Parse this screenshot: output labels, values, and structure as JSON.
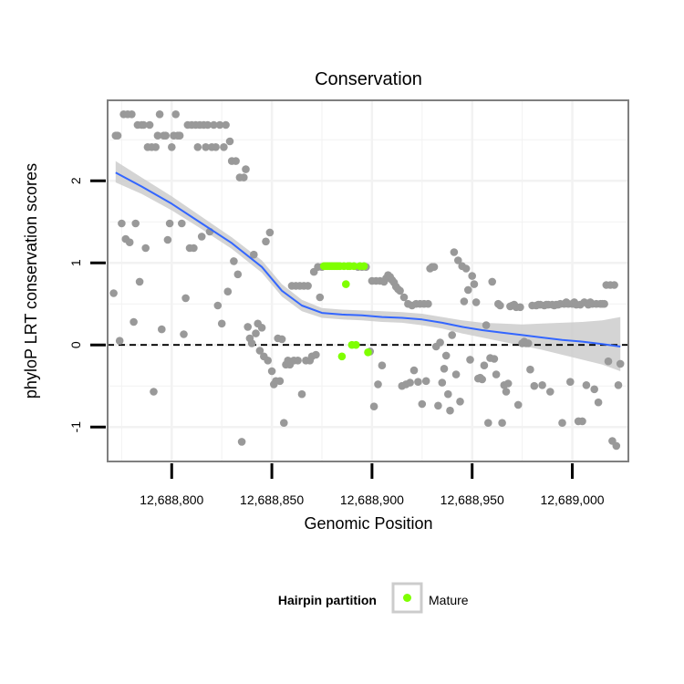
{
  "chart_data": {
    "type": "scatter",
    "title": "Conservation",
    "xlabel": "Genomic Position",
    "ylabel": "phyloP LRT conservation scores",
    "xlim": [
      12688768,
      12689028
    ],
    "ylim": [
      -1.42,
      2.98
    ],
    "x_ticks": [
      12688800,
      12688850,
      12688900,
      12688950,
      12689000
    ],
    "x_tick_labels": [
      "12,688,800",
      "12,688,850",
      "12,688,900",
      "12,688,950",
      "12,689,000"
    ],
    "y_ticks": [
      -1,
      0,
      1,
      2
    ],
    "y_tick_labels": [
      "-1",
      "0",
      "1",
      "2"
    ],
    "grid": true,
    "reference_line": {
      "y": 0,
      "style": "dashed"
    },
    "legend": {
      "title": "Hairpin partition",
      "entries": [
        "Mature"
      ],
      "position": "bottom"
    },
    "colors": {
      "other": "#999999",
      "mature": "#7fff00",
      "smooth": "#3366ff",
      "band": "#cccccc",
      "panel_border": "#7f7f7f",
      "grid": "#f2f2f2"
    },
    "series": [
      {
        "name": "Other",
        "points": [
          [
            12688771,
            0.63
          ],
          [
            12688772,
            2.55
          ],
          [
            12688773,
            2.55
          ],
          [
            12688774,
            0.05
          ],
          [
            12688775,
            1.48
          ],
          [
            12688776,
            2.81
          ],
          [
            12688777,
            1.29
          ],
          [
            12688778,
            2.81
          ],
          [
            12688779,
            1.25
          ],
          [
            12688780,
            2.81
          ],
          [
            12688781,
            0.28
          ],
          [
            12688782,
            1.48
          ],
          [
            12688783,
            2.68
          ],
          [
            12688784,
            0.77
          ],
          [
            12688785,
            2.68
          ],
          [
            12688786,
            2.68
          ],
          [
            12688787,
            1.18
          ],
          [
            12688788,
            2.41
          ],
          [
            12688789,
            2.68
          ],
          [
            12688790,
            2.41
          ],
          [
            12688791,
            -0.57
          ],
          [
            12688792,
            2.41
          ],
          [
            12688793,
            2.55
          ],
          [
            12688794,
            2.81
          ],
          [
            12688795,
            0.19
          ],
          [
            12688796,
            2.55
          ],
          [
            12688797,
            2.55
          ],
          [
            12688798,
            1.28
          ],
          [
            12688799,
            1.48
          ],
          [
            12688800,
            2.41
          ],
          [
            12688801,
            2.55
          ],
          [
            12688802,
            2.81
          ],
          [
            12688803,
            2.55
          ],
          [
            12688804,
            2.55
          ],
          [
            12688805,
            1.48
          ],
          [
            12688806,
            0.13
          ],
          [
            12688807,
            0.57
          ],
          [
            12688808,
            2.68
          ],
          [
            12688809,
            1.18
          ],
          [
            12688810,
            2.68
          ],
          [
            12688811,
            1.18
          ],
          [
            12688812,
            2.68
          ],
          [
            12688813,
            2.41
          ],
          [
            12688814,
            2.68
          ],
          [
            12688815,
            1.32
          ],
          [
            12688816,
            2.68
          ],
          [
            12688817,
            2.41
          ],
          [
            12688818,
            2.68
          ],
          [
            12688819,
            1.38
          ],
          [
            12688820,
            2.41
          ],
          [
            12688821,
            2.68
          ],
          [
            12688822,
            2.41
          ],
          [
            12688823,
            0.48
          ],
          [
            12688824,
            2.68
          ],
          [
            12688825,
            0.26
          ],
          [
            12688826,
            2.41
          ],
          [
            12688827,
            2.68
          ],
          [
            12688828,
            0.65
          ],
          [
            12688829,
            2.48
          ],
          [
            12688830,
            2.24
          ],
          [
            12688831,
            1.02
          ],
          [
            12688832,
            2.24
          ],
          [
            12688833,
            0.86
          ],
          [
            12688834,
            2.04
          ],
          [
            12688835,
            -1.18
          ],
          [
            12688836,
            2.04
          ],
          [
            12688837,
            2.14
          ],
          [
            12688838,
            0.22
          ],
          [
            12688839,
            0.08
          ],
          [
            12688840,
            0.02
          ],
          [
            12688841,
            1.1
          ],
          [
            12688842,
            0.14
          ],
          [
            12688843,
            0.26
          ],
          [
            12688844,
            -0.07
          ],
          [
            12688845,
            0.21
          ],
          [
            12688846,
            -0.14
          ],
          [
            12688847,
            1.26
          ],
          [
            12688848,
            -0.19
          ],
          [
            12688849,
            1.37
          ],
          [
            12688850,
            -0.32
          ],
          [
            12688851,
            -0.48
          ],
          [
            12688852,
            -0.44
          ],
          [
            12688853,
            0.08
          ],
          [
            12688854,
            -0.44
          ],
          [
            12688855,
            0.07
          ],
          [
            12688856,
            -0.95
          ],
          [
            12688857,
            -0.24
          ],
          [
            12688858,
            -0.19
          ],
          [
            12688859,
            -0.24
          ],
          [
            12688860,
            0.72
          ],
          [
            12688861,
            -0.19
          ],
          [
            12688862,
            0.72
          ],
          [
            12688863,
            -0.19
          ],
          [
            12688864,
            0.72
          ],
          [
            12688865,
            -0.6
          ],
          [
            12688866,
            0.72
          ],
          [
            12688867,
            -0.19
          ],
          [
            12688868,
            0.72
          ],
          [
            12688869,
            -0.19
          ],
          [
            12688870,
            -0.14
          ],
          [
            12688871,
            0.89
          ],
          [
            12688872,
            -0.12
          ],
          [
            12688873,
            0.95
          ],
          [
            12688874,
            0.58
          ],
          [
            12688875,
            0.95
          ],
          [
            12688893,
            0.95
          ],
          [
            12688895,
            0.95
          ],
          [
            12688897,
            0.95
          ],
          [
            12688899,
            -0.08
          ],
          [
            12688900,
            0.78
          ],
          [
            12688901,
            -0.75
          ],
          [
            12688902,
            0.78
          ],
          [
            12688903,
            -0.48
          ],
          [
            12688904,
            0.78
          ],
          [
            12688905,
            -0.25
          ],
          [
            12688906,
            0.77
          ],
          [
            12688907,
            0.81
          ],
          [
            12688908,
            0.85
          ],
          [
            12688909,
            0.83
          ],
          [
            12688910,
            0.79
          ],
          [
            12688911,
            0.76
          ],
          [
            12688912,
            0.71
          ],
          [
            12688913,
            0.68
          ],
          [
            12688914,
            0.66
          ],
          [
            12688915,
            -0.5
          ],
          [
            12688916,
            0.58
          ],
          [
            12688917,
            -0.48
          ],
          [
            12688918,
            0.5
          ],
          [
            12688919,
            -0.46
          ],
          [
            12688920,
            0.48
          ],
          [
            12688921,
            -0.31
          ],
          [
            12688922,
            0.5
          ],
          [
            12688923,
            -0.45
          ],
          [
            12688924,
            0.5
          ],
          [
            12688925,
            -0.72
          ],
          [
            12688926,
            0.5
          ],
          [
            12688927,
            -0.44
          ],
          [
            12688928,
            0.5
          ],
          [
            12688929,
            0.93
          ],
          [
            12688930,
            0.95
          ],
          [
            12688931,
            0.95
          ],
          [
            12688932,
            -0.02
          ],
          [
            12688933,
            -0.74
          ],
          [
            12688934,
            0.03
          ],
          [
            12688935,
            -0.46
          ],
          [
            12688936,
            -0.29
          ],
          [
            12688937,
            -0.13
          ],
          [
            12688938,
            -0.6
          ],
          [
            12688939,
            -0.8
          ],
          [
            12688940,
            0.12
          ],
          [
            12688941,
            1.13
          ],
          [
            12688942,
            -0.36
          ],
          [
            12688943,
            1.03
          ],
          [
            12688944,
            -0.69
          ],
          [
            12688945,
            0.96
          ],
          [
            12688946,
            0.53
          ],
          [
            12688947,
            0.93
          ],
          [
            12688948,
            0.67
          ],
          [
            12688949,
            -0.18
          ],
          [
            12688950,
            0.84
          ],
          [
            12688951,
            0.74
          ],
          [
            12688952,
            0.52
          ],
          [
            12688953,
            -0.41
          ],
          [
            12688954,
            -0.4
          ],
          [
            12688955,
            -0.42
          ],
          [
            12688956,
            -0.25
          ],
          [
            12688957,
            0.24
          ],
          [
            12688958,
            -0.95
          ],
          [
            12688959,
            -0.16
          ],
          [
            12688960,
            0.77
          ],
          [
            12688961,
            -0.17
          ],
          [
            12688962,
            -0.36
          ],
          [
            12688963,
            0.5
          ],
          [
            12688964,
            0.48
          ],
          [
            12688965,
            -0.95
          ],
          [
            12688966,
            -0.49
          ],
          [
            12688967,
            -0.57
          ],
          [
            12688968,
            -0.47
          ],
          [
            12688969,
            0.47
          ],
          [
            12688970,
            0.48
          ],
          [
            12688971,
            0.49
          ],
          [
            12688972,
            0.46
          ],
          [
            12688973,
            -0.73
          ],
          [
            12688974,
            0.46
          ],
          [
            12688975,
            0.02
          ],
          [
            12688976,
            0.04
          ],
          [
            12688977,
            0.02
          ],
          [
            12688978,
            0.02
          ],
          [
            12688979,
            -0.3
          ],
          [
            12688980,
            0.48
          ],
          [
            12688981,
            -0.5
          ],
          [
            12688982,
            0.48
          ],
          [
            12688983,
            0.49
          ],
          [
            12688984,
            0.49
          ],
          [
            12688985,
            -0.49
          ],
          [
            12688986,
            0.48
          ],
          [
            12688987,
            0.49
          ],
          [
            12688988,
            0.49
          ],
          [
            12688989,
            -0.57
          ],
          [
            12688990,
            0.49
          ],
          [
            12688991,
            0.48
          ],
          [
            12688992,
            0.49
          ],
          [
            12688993,
            0.49
          ],
          [
            12688994,
            0.5
          ],
          [
            12688995,
            -0.95
          ],
          [
            12688996,
            0.5
          ],
          [
            12688997,
            0.52
          ],
          [
            12688998,
            0.5
          ],
          [
            12688999,
            -0.45
          ],
          [
            12689000,
            0.5
          ],
          [
            12689001,
            0.52
          ],
          [
            12689002,
            0.49
          ],
          [
            12689003,
            -0.93
          ],
          [
            12689004,
            0.49
          ],
          [
            12689005,
            -0.93
          ],
          [
            12689006,
            0.52
          ],
          [
            12689007,
            -0.49
          ],
          [
            12689008,
            0.49
          ],
          [
            12689009,
            0.52
          ],
          [
            12689010,
            0.5
          ],
          [
            12689011,
            -0.54
          ],
          [
            12689012,
            0.5
          ],
          [
            12689013,
            -0.7
          ],
          [
            12689014,
            0.5
          ],
          [
            12689015,
            0.5
          ],
          [
            12689016,
            0.5
          ],
          [
            12689017,
            0.73
          ],
          [
            12689018,
            -0.2
          ],
          [
            12689019,
            0.73
          ],
          [
            12689020,
            -1.17
          ],
          [
            12689021,
            0.73
          ],
          [
            12689022,
            -1.23
          ],
          [
            12689023,
            -0.49
          ],
          [
            12689024,
            -0.23
          ]
        ]
      },
      {
        "name": "Mature",
        "points": [
          [
            12688876,
            0.96
          ],
          [
            12688877,
            0.96
          ],
          [
            12688878,
            0.96
          ],
          [
            12688879,
            0.96
          ],
          [
            12688880,
            0.96
          ],
          [
            12688881,
            0.96
          ],
          [
            12688882,
            0.96
          ],
          [
            12688883,
            0.96
          ],
          [
            12688884,
            0.96
          ],
          [
            12688885,
            -0.14
          ],
          [
            12688886,
            0.96
          ],
          [
            12688887,
            0.74
          ],
          [
            12688888,
            0.96
          ],
          [
            12688889,
            0.96
          ],
          [
            12688890,
            0.0
          ],
          [
            12688891,
            0.96
          ],
          [
            12688892,
            0.0
          ],
          [
            12688894,
            0.96
          ],
          [
            12688896,
            0.96
          ],
          [
            12688898,
            -0.09
          ]
        ]
      }
    ],
    "smooth_curve": {
      "x": [
        12688772,
        12688785,
        12688800,
        12688815,
        12688830,
        12688845,
        12688855,
        12688865,
        12688875,
        12688885,
        12688895,
        12688905,
        12688915,
        12688925,
        12688935,
        12688945,
        12688955,
        12688965,
        12688975,
        12688985,
        12688995,
        12689005,
        12689015,
        12689024
      ],
      "y": [
        2.1,
        1.93,
        1.72,
        1.48,
        1.24,
        0.95,
        0.66,
        0.48,
        0.39,
        0.37,
        0.36,
        0.34,
        0.33,
        0.31,
        0.27,
        0.22,
        0.18,
        0.15,
        0.12,
        0.09,
        0.06,
        0.04,
        0.01,
        -0.02
      ],
      "lower": [
        1.98,
        1.84,
        1.64,
        1.41,
        1.17,
        0.88,
        0.59,
        0.41,
        0.33,
        0.31,
        0.3,
        0.28,
        0.27,
        0.24,
        0.2,
        0.14,
        0.09,
        0.04,
        -0.01,
        -0.06,
        -0.12,
        -0.18,
        -0.24,
        -0.32
      ],
      "upper": [
        2.24,
        2.04,
        1.81,
        1.56,
        1.31,
        1.03,
        0.74,
        0.55,
        0.45,
        0.43,
        0.42,
        0.41,
        0.4,
        0.38,
        0.34,
        0.3,
        0.27,
        0.26,
        0.25,
        0.26,
        0.27,
        0.28,
        0.3,
        0.34
      ]
    }
  }
}
